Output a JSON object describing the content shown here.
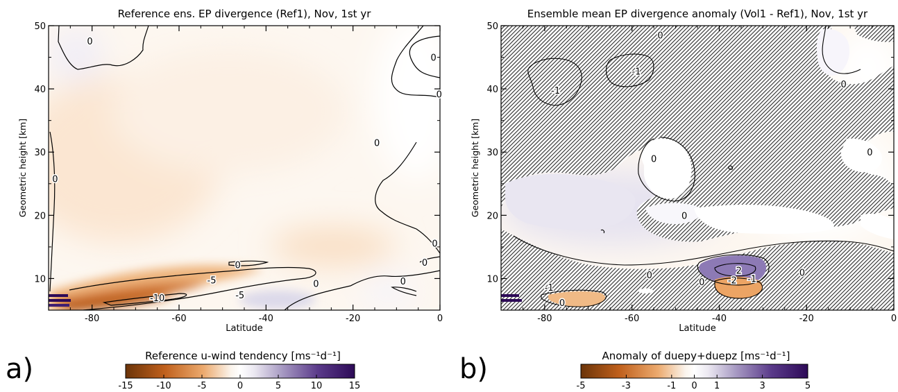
{
  "chart_data": [
    {
      "type": "heatmap",
      "panel_letter": "a)",
      "title": "Reference ens. EP divergence (Ref1), Nov, 1st yr",
      "xlabel": "Latitude",
      "ylabel": "Geometric height [km]",
      "xlim": [
        -90,
        0
      ],
      "ylim": [
        5,
        50
      ],
      "xticks": [
        -80,
        -60,
        -40,
        -20,
        0
      ],
      "yticks": [
        10,
        20,
        30,
        40,
        50
      ],
      "colorbar": {
        "label": "Reference u-wind tendency [ms⁻¹d⁻¹]",
        "range": [
          -15,
          15
        ],
        "ticks": [
          -15,
          -10,
          -5,
          0,
          5,
          10,
          15
        ],
        "colors": [
          "#6b3409",
          "#c0601c",
          "#ecaa6e",
          "#fbf4ec",
          "#ffffff",
          "#ece9f2",
          "#a99cc4",
          "#5a3a8a",
          "#2d0a57"
        ]
      },
      "contour_labels": [
        {
          "text": "0",
          "x": -80.5,
          "y": 47.6
        },
        {
          "text": "0",
          "x": -1.5,
          "y": 45.0
        },
        {
          "text": "0",
          "x": -0.2,
          "y": 39.2
        },
        {
          "text": "0",
          "x": -88.5,
          "y": 25.8
        },
        {
          "text": "0",
          "x": -14.5,
          "y": 31.5
        },
        {
          "text": "0",
          "x": -1.2,
          "y": 15.6
        },
        {
          "text": "0",
          "x": -3.5,
          "y": 12.6
        },
        {
          "text": "0",
          "x": -8.5,
          "y": 9.6
        },
        {
          "text": "0",
          "x": -46.5,
          "y": 12.2
        },
        {
          "text": "0",
          "x": -28.5,
          "y": 9.2
        },
        {
          "text": "-5",
          "x": -52.5,
          "y": 9.8
        },
        {
          "text": "-5",
          "x": -46.0,
          "y": 7.4
        },
        {
          "text": "-10",
          "x": -65.0,
          "y": 7.0
        }
      ]
    },
    {
      "type": "heatmap",
      "panel_letter": "b)",
      "title": "Ensemble mean EP divergence anomaly (Vol1 - Ref1), Nov, 1st yr",
      "xlabel": "Latitude",
      "ylabel": "Geometric height [km]",
      "xlim": [
        -90,
        0
      ],
      "ylim": [
        5,
        50
      ],
      "xticks": [
        -80,
        -60,
        -40,
        -20,
        0
      ],
      "yticks": [
        10,
        20,
        30,
        40,
        50
      ],
      "colorbar": {
        "label": "Anomaly of duepy+duepz [ms⁻¹d⁻¹]",
        "range": [
          -5,
          5
        ],
        "ticks": [
          -5,
          -3,
          -1,
          0,
          1,
          3,
          5
        ],
        "colors": [
          "#6b3409",
          "#c0601c",
          "#ecaa6e",
          "#fbf4ec",
          "#ffffff",
          "#ece9f2",
          "#a99cc4",
          "#5a3a8a",
          "#2d0a57"
        ]
      },
      "contour_labels": [
        {
          "text": "0",
          "x": -53.5,
          "y": 48.5
        },
        {
          "text": "-1",
          "x": -59.0,
          "y": 42.8
        },
        {
          "text": "-1",
          "x": -77.5,
          "y": 39.8
        },
        {
          "text": "0",
          "x": -11.5,
          "y": 40.8
        },
        {
          "text": "0",
          "x": -5.5,
          "y": 30.0
        },
        {
          "text": "0",
          "x": -55.0,
          "y": 29.0
        },
        {
          "text": "0",
          "x": -48.0,
          "y": 20.0
        },
        {
          "text": "0",
          "x": -56.0,
          "y": 10.6
        },
        {
          "text": "0",
          "x": -44.0,
          "y": 9.5
        },
        {
          "text": "0",
          "x": -21.0,
          "y": 11.0
        },
        {
          "text": "-2",
          "x": -37.0,
          "y": 9.8
        },
        {
          "text": "2",
          "x": -35.5,
          "y": 11.3
        },
        {
          "text": "-1",
          "x": -32.5,
          "y": 10.0
        },
        {
          "text": "-1",
          "x": -79.0,
          "y": 8.6
        },
        {
          "text": "0",
          "x": -76.0,
          "y": 6.2
        }
      ]
    }
  ]
}
